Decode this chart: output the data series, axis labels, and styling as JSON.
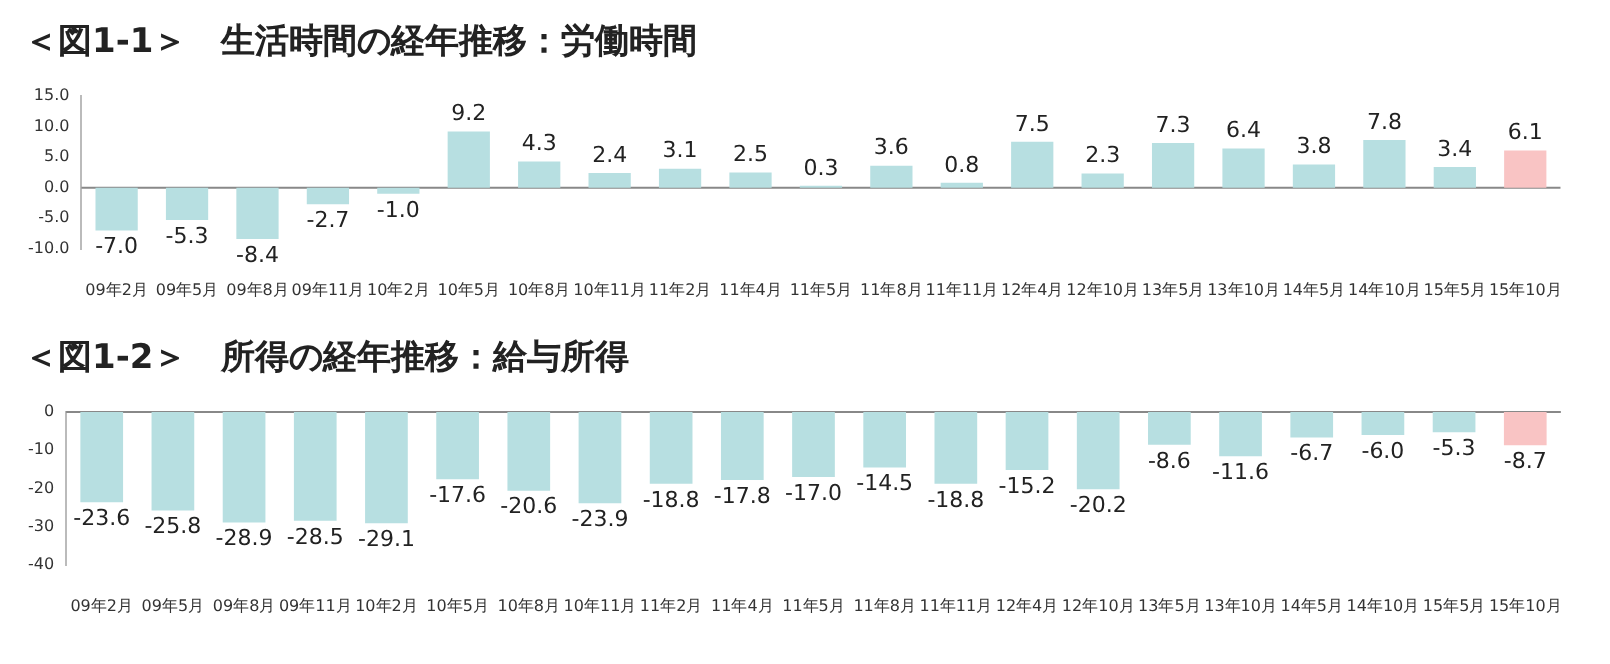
{
  "chart_data": [
    {
      "type": "bar",
      "title": "＜図1-1＞　生活時間の経年推移：労働時間",
      "categories": [
        "09年2月",
        "09年5月",
        "09年8月",
        "09年11月",
        "10年2月",
        "10年5月",
        "10年8月",
        "10年11月",
        "11年2月",
        "11年4月",
        "11年5月",
        "11年8月",
        "11年11月",
        "12年4月",
        "12年10月",
        "13年5月",
        "13年10月",
        "14年5月",
        "14年10月",
        "15年5月",
        "15年10月"
      ],
      "values": [
        -7.0,
        -5.3,
        -8.4,
        -2.7,
        -1.0,
        9.2,
        4.3,
        2.4,
        3.1,
        2.5,
        0.3,
        3.6,
        0.8,
        7.5,
        2.3,
        7.3,
        6.4,
        3.8,
        7.8,
        3.4,
        6.1
      ],
      "value_labels": [
        "-7.0",
        "-5.3",
        "-8.4",
        "-2.7",
        "-1.0",
        "9.2",
        "4.3",
        "2.4",
        "3.1",
        "2.5",
        "0.3",
        "3.6",
        "0.8",
        "7.5",
        "2.3",
        "7.3",
        "6.4",
        "3.8",
        "7.8",
        "3.4",
        "6.1"
      ],
      "colors": [
        "#b7dfe1",
        "#b7dfe1",
        "#b7dfe1",
        "#b7dfe1",
        "#b7dfe1",
        "#b7dfe1",
        "#b7dfe1",
        "#b7dfe1",
        "#b7dfe1",
        "#b7dfe1",
        "#b7dfe1",
        "#b7dfe1",
        "#b7dfe1",
        "#b7dfe1",
        "#b7dfe1",
        "#b7dfe1",
        "#b7dfe1",
        "#b7dfe1",
        "#b7dfe1",
        "#b7dfe1",
        "#f9c4c4"
      ],
      "ylim": [
        -10,
        15
      ],
      "yticks": [
        {
          "value": -10,
          "label": "-10.0"
        },
        {
          "value": -5,
          "label": "-5.0"
        },
        {
          "value": 0,
          "label": "0.0"
        },
        {
          "value": 5,
          "label": "5.0"
        },
        {
          "value": 10,
          "label": "10.0"
        },
        {
          "value": 15,
          "label": "15.0"
        }
      ],
      "ref_lines": [
        {
          "axis": "y",
          "value": 0,
          "color": "#888888"
        }
      ],
      "grid": false,
      "legend": false
    },
    {
      "type": "bar",
      "title": "＜図1-2＞　所得の経年推移：給与所得",
      "categories": [
        "09年2月",
        "09年5月",
        "09年8月",
        "09年11月",
        "10年2月",
        "10年5月",
        "10年8月",
        "10年11月",
        "11年2月",
        "11年4月",
        "11年5月",
        "11年8月",
        "11年11月",
        "12年4月",
        "12年10月",
        "13年5月",
        "13年10月",
        "14年5月",
        "14年10月",
        "15年5月",
        "15年10月"
      ],
      "values": [
        -23.6,
        -25.8,
        -28.9,
        -28.5,
        -29.1,
        -17.6,
        -20.6,
        -23.9,
        -18.8,
        -17.8,
        -17.0,
        -14.5,
        -18.8,
        -15.2,
        -20.2,
        -8.6,
        -11.6,
        -6.7,
        -6.0,
        -5.3,
        -8.7
      ],
      "value_labels": [
        "-23.6",
        "-25.8",
        "-28.9",
        "-28.5",
        "-29.1",
        "-17.6",
        "-20.6",
        "-23.9",
        "-18.8",
        "-17.8",
        "-17.0",
        "-14.5",
        "-18.8",
        "-15.2",
        "-20.2",
        "-8.6",
        "-11.6",
        "-6.7",
        "-6.0",
        "-5.3",
        "-8.7"
      ],
      "colors": [
        "#b7dfe1",
        "#b7dfe1",
        "#b7dfe1",
        "#b7dfe1",
        "#b7dfe1",
        "#b7dfe1",
        "#b7dfe1",
        "#b7dfe1",
        "#b7dfe1",
        "#b7dfe1",
        "#b7dfe1",
        "#b7dfe1",
        "#b7dfe1",
        "#b7dfe1",
        "#b7dfe1",
        "#b7dfe1",
        "#b7dfe1",
        "#b7dfe1",
        "#b7dfe1",
        "#b7dfe1",
        "#f9c4c4"
      ],
      "ylim": [
        -40,
        0
      ],
      "yticks": [
        -40,
        -30,
        -20,
        -10,
        0
      ],
      "ref_lines": [
        {
          "axis": "y",
          "value": 0,
          "color": "#888888"
        }
      ],
      "grid": false,
      "legend": false
    }
  ]
}
